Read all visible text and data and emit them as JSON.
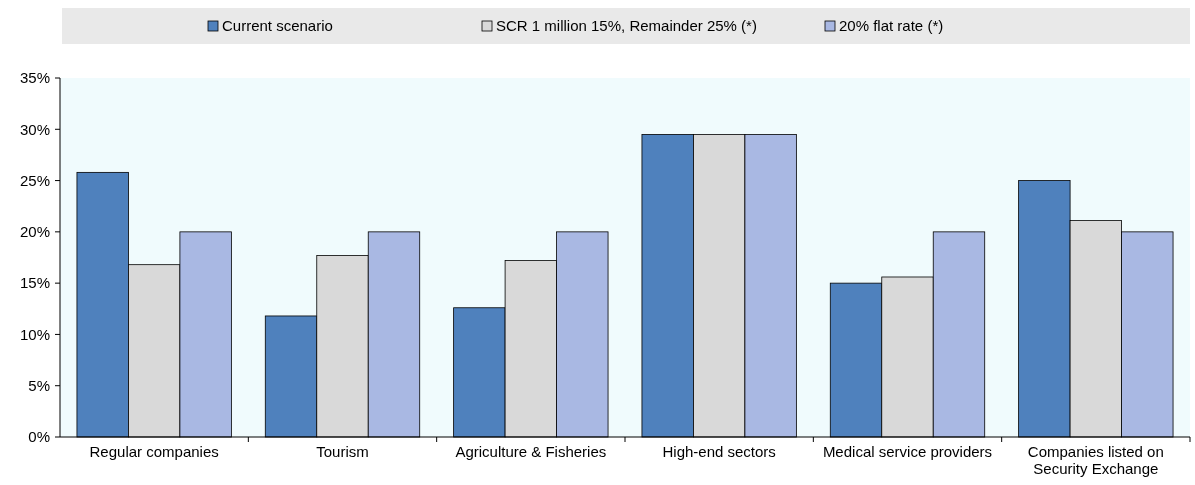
{
  "chart_data": {
    "type": "bar",
    "categories": [
      "Regular companies",
      "Tourism",
      "Agriculture & Fisheries",
      "High-end sectors",
      "Medical service providers",
      "Companies listed on\nSecurity Exchange"
    ],
    "series": [
      {
        "name": "Current scenario",
        "color": "#4f81bd",
        "values": [
          25.8,
          11.8,
          12.6,
          29.5,
          15.0,
          25.0
        ]
      },
      {
        "name": "SCR 1 million 15%, Remainder 25% (*)",
        "color": "#d9d9d9",
        "values": [
          16.8,
          17.7,
          17.2,
          29.5,
          15.6,
          21.1
        ]
      },
      {
        "name": "20% flat rate (*)",
        "color": "#a9b8e3",
        "values": [
          20,
          20,
          20,
          29.5,
          20,
          20
        ]
      }
    ],
    "ylim": [
      0,
      35
    ],
    "yticks": [
      {
        "value": 0,
        "label": "0%"
      },
      {
        "value": 5,
        "label": "5%"
      },
      {
        "value": 10,
        "label": "10%"
      },
      {
        "value": 15,
        "label": "15%"
      },
      {
        "value": 20,
        "label": "20%"
      },
      {
        "value": 25,
        "label": "25%"
      },
      {
        "value": 30,
        "label": "30%"
      },
      {
        "value": 35,
        "label": "35%"
      }
    ],
    "grid": false,
    "legend": "top"
  }
}
